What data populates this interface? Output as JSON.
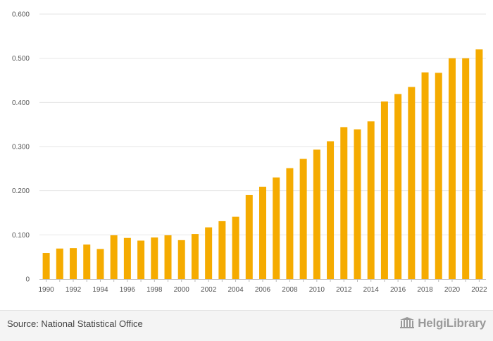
{
  "chart_data": {
    "type": "bar",
    "categories": [
      "1990",
      "1991",
      "1992",
      "1993",
      "1994",
      "1995",
      "1996",
      "1997",
      "1998",
      "1999",
      "2000",
      "2001",
      "2002",
      "2003",
      "2004",
      "2005",
      "2006",
      "2007",
      "2008",
      "2009",
      "2010",
      "2011",
      "2012",
      "2013",
      "2014",
      "2015",
      "2016",
      "2017",
      "2018",
      "2019",
      "2020",
      "2021",
      "2022"
    ],
    "values": [
      0.059,
      0.069,
      0.07,
      0.078,
      0.068,
      0.099,
      0.093,
      0.087,
      0.094,
      0.099,
      0.088,
      0.102,
      0.117,
      0.131,
      0.141,
      0.19,
      0.209,
      0.23,
      0.251,
      0.272,
      0.293,
      0.312,
      0.344,
      0.339,
      0.357,
      0.402,
      0.419,
      0.435,
      0.468,
      0.467,
      0.5,
      0.5,
      0.52
    ],
    "x_tick_labels": [
      "1990",
      "1992",
      "1994",
      "1996",
      "1998",
      "2000",
      "2002",
      "2004",
      "2006",
      "2008",
      "2010",
      "2012",
      "2014",
      "2016",
      "2018",
      "2020",
      "2022"
    ],
    "y_ticks": [
      0,
      0.1,
      0.2,
      0.3,
      0.4,
      0.5,
      0.6
    ],
    "y_tick_labels": [
      "0",
      "0.100",
      "0.200",
      "0.300",
      "0.400",
      "0.500",
      "0.600"
    ],
    "ylim": [
      0,
      0.6
    ],
    "grid": true,
    "bar_color": "#f5ab00",
    "title": "",
    "xlabel": "",
    "ylabel": ""
  },
  "footer": {
    "source_text": "Source: National Statistical Office",
    "logo_text": "HelgiLibrary",
    "logo_icon": "library-columns-icon"
  },
  "colors": {
    "grid": "#e6e6e6",
    "axis": "#bbbbbb",
    "footer_bg": "#f4f4f4",
    "logo": "#9a9a9a"
  }
}
